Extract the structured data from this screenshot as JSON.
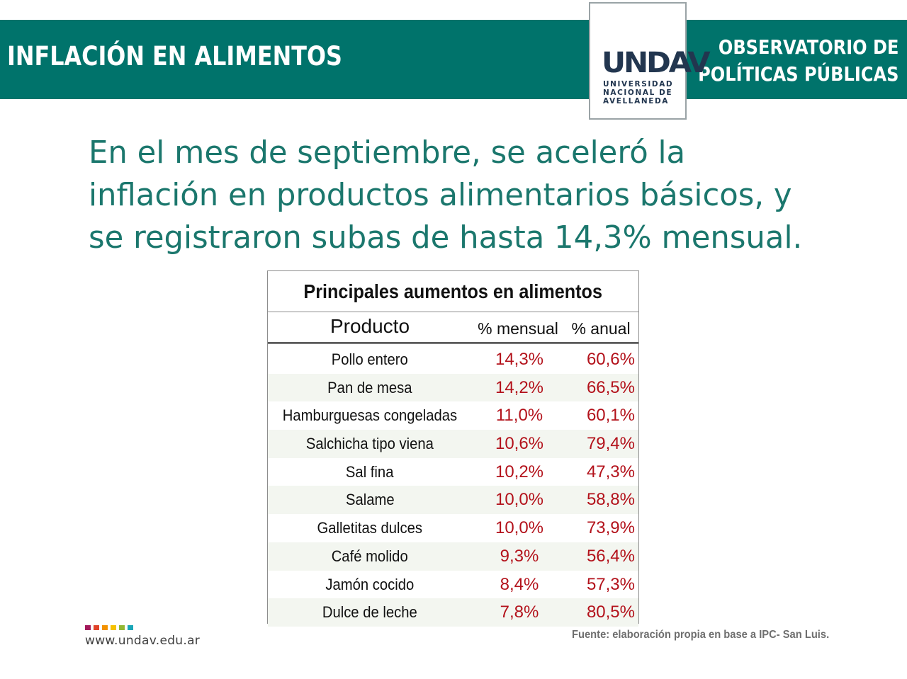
{
  "header": {
    "left_title": "INFLACIÓN EN ALIMENTOS",
    "right_title_line1": "OBSERVATORIO DE",
    "right_title_line2": "POLÍTICAS PÚBLICAS",
    "logo_mark": "UNDAV",
    "logo_line1": "UNIVERSIDAD",
    "logo_line2": "NACIONAL DE",
    "logo_line3": "AVELLANEDA",
    "band_color": "#00736b"
  },
  "headline": {
    "line1": "En el mes de septiembre, se aceleró la",
    "line2": "inflación en productos alimentarios básicos, y",
    "line3": "se registraron subas de hasta 14,3% mensual."
  },
  "table": {
    "title": "Principales aumentos en alimentos",
    "headers": {
      "product": "Producto",
      "monthly": "% mensual",
      "annual": "% anual"
    },
    "rows": [
      {
        "product": "Pollo entero",
        "monthly": "14,3%",
        "annual": "60,6%"
      },
      {
        "product": "Pan de mesa",
        "monthly": "14,2%",
        "annual": "66,5%"
      },
      {
        "product": "Hamburguesas congeladas",
        "monthly": "11,0%",
        "annual": "60,1%"
      },
      {
        "product": "Salchicha tipo viena",
        "monthly": "10,6%",
        "annual": "79,4%"
      },
      {
        "product": "Sal fina",
        "monthly": "10,2%",
        "annual": "47,3%"
      },
      {
        "product": "Salame",
        "monthly": "10,0%",
        "annual": "58,8%"
      },
      {
        "product": "Galletitas dulces",
        "monthly": "10,0%",
        "annual": "73,9%"
      },
      {
        "product": "Café molido",
        "monthly": "9,3%",
        "annual": "56,4%"
      },
      {
        "product": "Jamón cocido",
        "monthly": "8,4%",
        "annual": "57,3%"
      },
      {
        "product": "Dulce de leche",
        "monthly": "7,8%",
        "annual": "80,5%"
      }
    ],
    "value_color": "#b3121b"
  },
  "footer": {
    "url": "www.undav.edu.ar",
    "source": "Fuente: elaboración propia en base a IPC- San Luis.",
    "dot_colors": [
      "#a3195b",
      "#e0432a",
      "#f39200",
      "#f6c100",
      "#93b733",
      "#1aa6b7"
    ]
  }
}
